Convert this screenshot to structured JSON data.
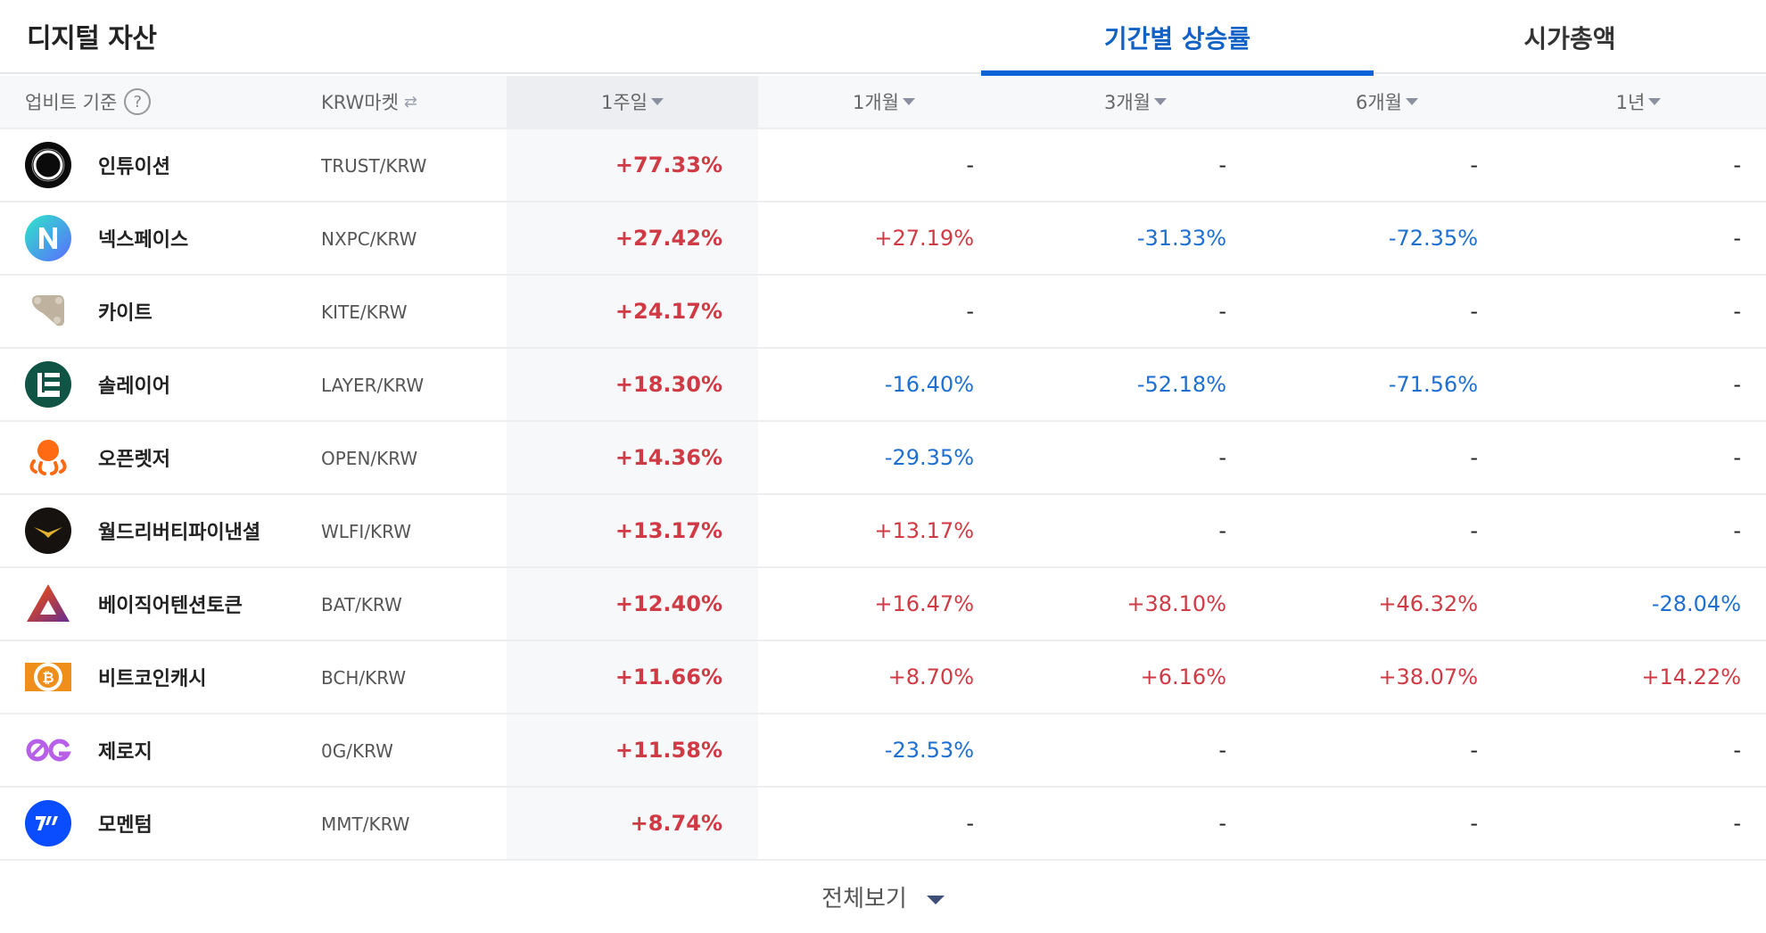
{
  "header": {
    "title": "디지털 자산",
    "tabs": [
      {
        "label": "기간별 상승률",
        "active": true
      },
      {
        "label": "시가총액",
        "active": false
      }
    ]
  },
  "table": {
    "columns": {
      "basis": "업비트 기준",
      "basis_help_icon": "?",
      "market": "KRW마켓",
      "market_swap_icon": "⇄",
      "week": "1주일",
      "month1": "1개월",
      "month3": "3개월",
      "month6": "6개월",
      "year1": "1년"
    },
    "sorted_column": "1주일",
    "colors": {
      "up": "#cf3a44",
      "down": "#1d6fd1",
      "accent": "#0a62d6"
    },
    "rows": [
      {
        "name": "인튜이션",
        "market": "TRUST/KRW",
        "icon": "intuition-logo",
        "week": "+77.33%",
        "m1": "-",
        "m3": "-",
        "m6": "-",
        "y1": "-"
      },
      {
        "name": "넥스페이스",
        "market": "NXPC/KRW",
        "icon": "nexpace-logo",
        "week": "+27.42%",
        "m1": "+27.19%",
        "m3": "-31.33%",
        "m6": "-72.35%",
        "y1": "-"
      },
      {
        "name": "카이트",
        "market": "KITE/KRW",
        "icon": "kite-logo",
        "week": "+24.17%",
        "m1": "-",
        "m3": "-",
        "m6": "-",
        "y1": "-"
      },
      {
        "name": "솔레이어",
        "market": "LAYER/KRW",
        "icon": "solayer-logo",
        "week": "+18.30%",
        "m1": "-16.40%",
        "m3": "-52.18%",
        "m6": "-71.56%",
        "y1": "-"
      },
      {
        "name": "오픈렛저",
        "market": "OPEN/KRW",
        "icon": "openledger-logo",
        "week": "+14.36%",
        "m1": "-29.35%",
        "m3": "-",
        "m6": "-",
        "y1": "-"
      },
      {
        "name": "월드리버티파이낸셜",
        "market": "WLFI/KRW",
        "icon": "wlfi-logo",
        "week": "+13.17%",
        "m1": "+13.17%",
        "m3": "-",
        "m6": "-",
        "y1": "-"
      },
      {
        "name": "베이직어텐션토큰",
        "market": "BAT/KRW",
        "icon": "bat-logo",
        "week": "+12.40%",
        "m1": "+16.47%",
        "m3": "+38.10%",
        "m6": "+46.32%",
        "y1": "-28.04%"
      },
      {
        "name": "비트코인캐시",
        "market": "BCH/KRW",
        "icon": "bch-logo",
        "week": "+11.66%",
        "m1": "+8.70%",
        "m3": "+6.16%",
        "m6": "+38.07%",
        "y1": "+14.22%"
      },
      {
        "name": "제로지",
        "market": "0G/KRW",
        "icon": "0g-logo",
        "week": "+11.58%",
        "m1": "-23.53%",
        "m3": "-",
        "m6": "-",
        "y1": "-"
      },
      {
        "name": "모멘텀",
        "market": "MMT/KRW",
        "icon": "momentum-logo",
        "week": "+8.74%",
        "m1": "-",
        "m3": "-",
        "m6": "-",
        "y1": "-"
      }
    ]
  },
  "footer": {
    "view_all": "전체보기"
  }
}
